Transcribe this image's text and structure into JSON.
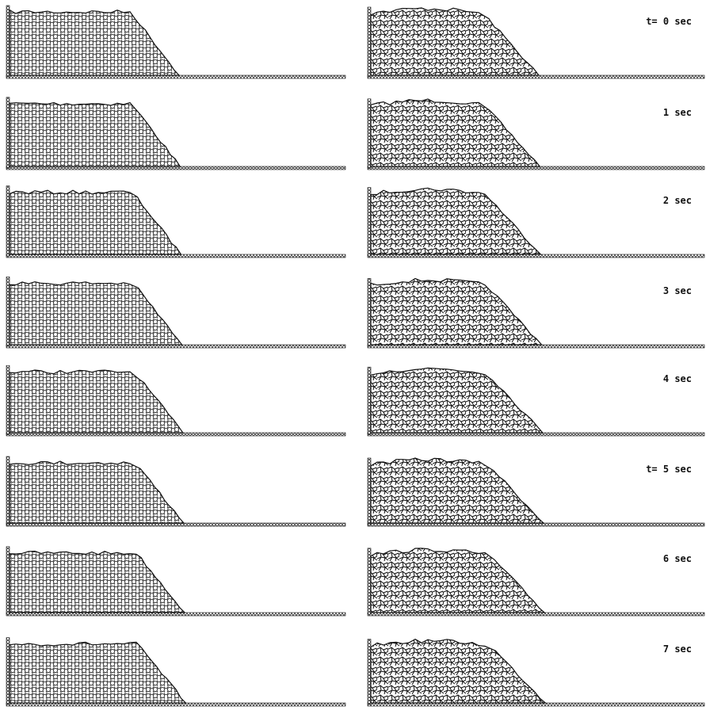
{
  "frames": [
    {
      "label": "t= 0 sec"
    },
    {
      "label": "1 sec"
    },
    {
      "label": "2 sec"
    },
    {
      "label": "3 sec"
    },
    {
      "label": "4 sec"
    },
    {
      "label": "t= 5 sec"
    },
    {
      "label": "6 sec"
    },
    {
      "label": "7 sec"
    }
  ]
}
